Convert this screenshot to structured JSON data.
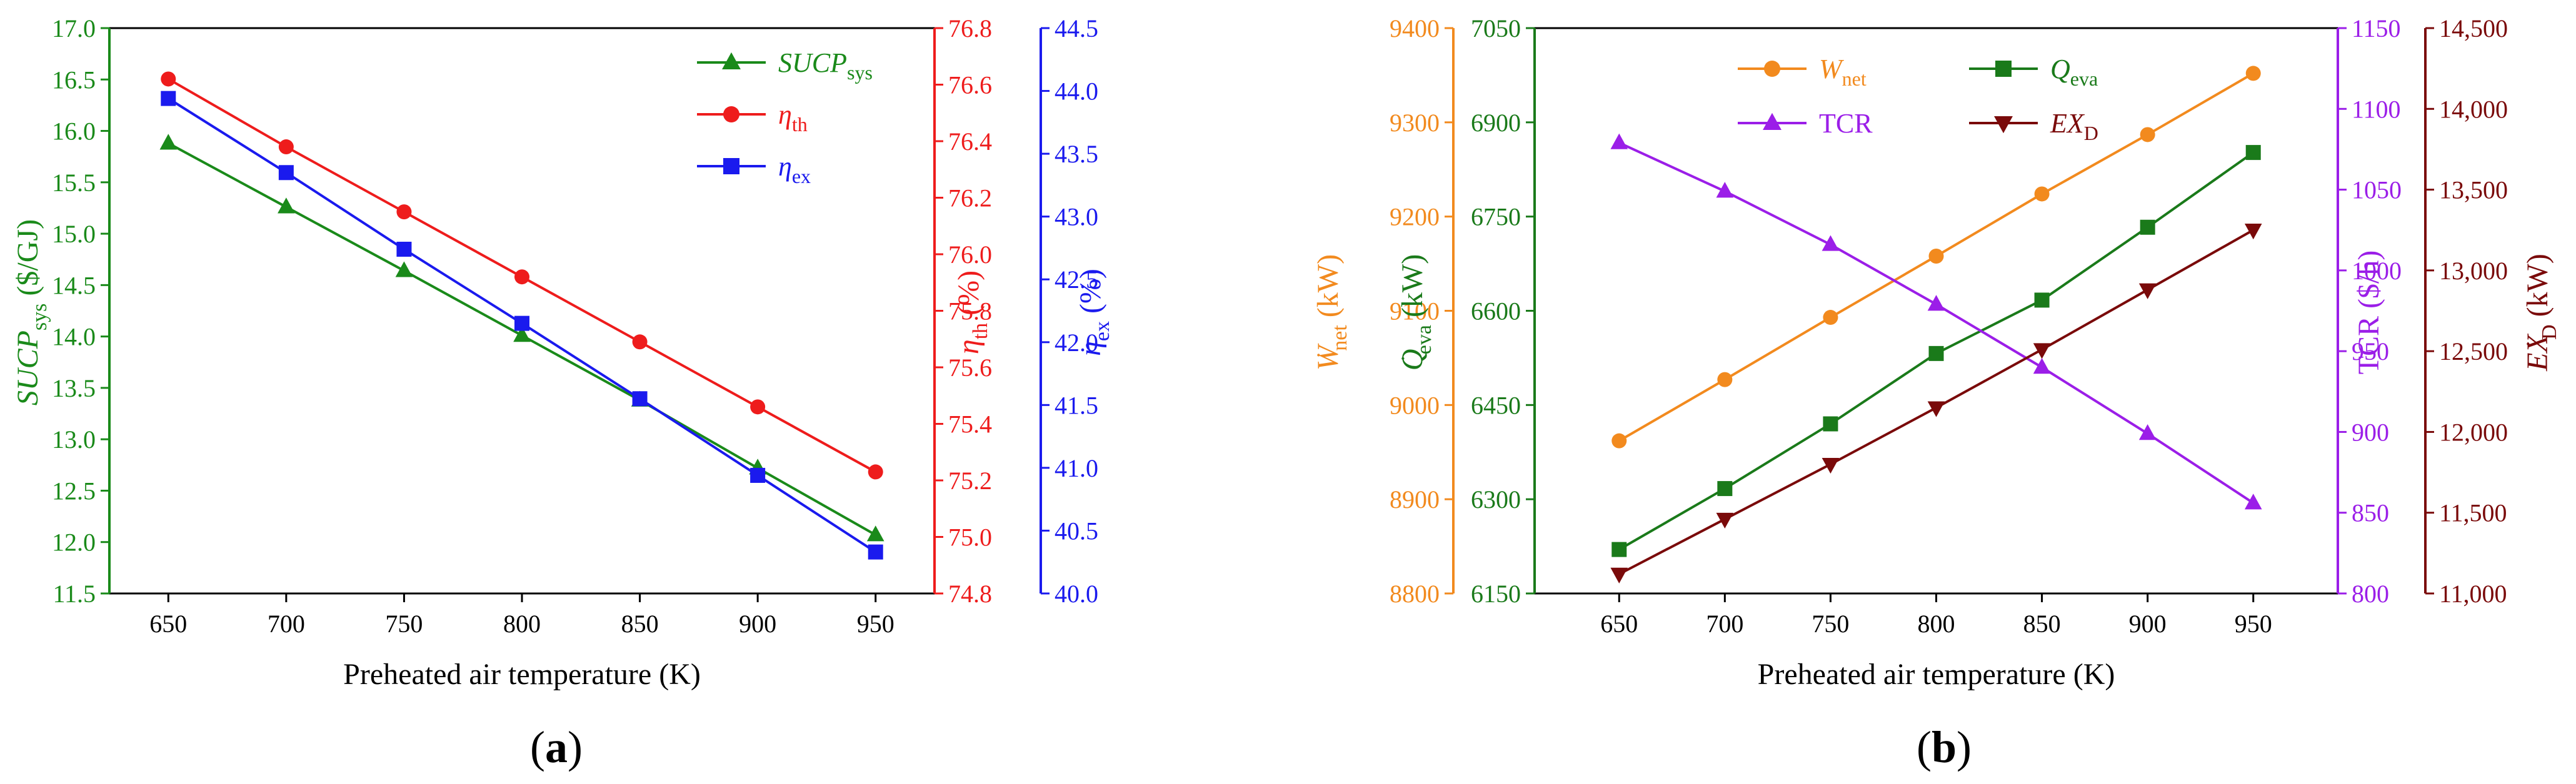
{
  "chart_data": [
    {
      "id": "a",
      "type": "line",
      "caption_letter": "a",
      "caption_left": "(",
      "caption_right": ")",
      "xlabel": "Preheated air temperature (K)",
      "x": [
        650,
        700,
        750,
        800,
        850,
        900,
        950
      ],
      "xlim": [
        625,
        975
      ],
      "xticks": [
        "650",
        "700",
        "750",
        "800",
        "850",
        "900",
        "950"
      ],
      "axes": [
        {
          "key": "y1",
          "side": "left",
          "color": "#1a8a1a",
          "ylim": [
            11.5,
            17.0
          ],
          "ticks": [
            "11.5",
            "12.0",
            "12.5",
            "13.0",
            "13.5",
            "14.0",
            "14.5",
            "15.0",
            "15.5",
            "16.0",
            "16.5",
            "17.0"
          ],
          "label_main": "SUCP",
          "label_sub": "sys",
          "label_tail": " ($/GJ)"
        },
        {
          "key": "y2",
          "side": "right",
          "color": "#ee1c1c",
          "ylim": [
            74.8,
            76.8
          ],
          "ticks": [
            "74.8",
            "75.0",
            "75.2",
            "75.4",
            "75.6",
            "75.8",
            "76.0",
            "76.2",
            "76.4",
            "76.6",
            "76.8"
          ],
          "label_main": "η",
          "label_sub": "th",
          "label_tail": " (%)"
        },
        {
          "key": "y3",
          "side": "right",
          "color": "#1a1aee",
          "ylim": [
            40.0,
            44.5
          ],
          "ticks": [
            "40.0",
            "40.5",
            "41.0",
            "41.5",
            "42.0",
            "42.5",
            "43.0",
            "43.5",
            "44.0",
            "44.5"
          ],
          "label_main": "η",
          "label_sub": "ex",
          "label_tail": " (%)"
        }
      ],
      "series": [
        {
          "axis": "y1",
          "name_main": "SUCP",
          "name_sub": "sys",
          "color": "#1a8a1a",
          "marker": "triangle-up",
          "values": [
            15.88,
            15.26,
            14.64,
            14.01,
            13.38,
            12.72,
            12.07
          ]
        },
        {
          "axis": "y2",
          "name_main": "η",
          "name_sub": "th",
          "color": "#ee1c1c",
          "marker": "circle",
          "values": [
            76.62,
            76.38,
            76.15,
            75.92,
            75.69,
            75.46,
            75.23
          ]
        },
        {
          "axis": "y3",
          "name_main": "η",
          "name_sub": "ex",
          "color": "#1a1aee",
          "marker": "square",
          "values": [
            43.94,
            43.35,
            42.74,
            42.15,
            41.55,
            40.94,
            40.33
          ]
        }
      ]
    },
    {
      "id": "b",
      "type": "line",
      "caption_letter": "b",
      "caption_left": "(",
      "caption_right": ")",
      "xlabel": "Preheated air temperature (K)",
      "x": [
        650,
        700,
        750,
        800,
        850,
        900,
        950
      ],
      "xlim": [
        610,
        990
      ],
      "xticks": [
        "650",
        "700",
        "750",
        "800",
        "850",
        "900",
        "950"
      ],
      "axes": [
        {
          "key": "w",
          "side": "left",
          "color": "#f28a1e",
          "ylim": [
            8800,
            9400
          ],
          "ticks": [
            "8800",
            "8900",
            "9000",
            "9100",
            "9200",
            "9300",
            "9400"
          ],
          "label_main": "W",
          "label_dot": "˙",
          "label_sub": "net",
          "label_tail": " (kW)"
        },
        {
          "key": "q",
          "side": "left",
          "color": "#1a7a1a",
          "ylim": [
            6150,
            7050
          ],
          "ticks": [
            "6150",
            "6300",
            "6450",
            "6600",
            "6750",
            "6900",
            "7050"
          ],
          "label_main": "Q",
          "label_dot": "˙",
          "label_sub": "eva",
          "label_tail": " (kW)"
        },
        {
          "key": "t",
          "side": "right",
          "color": "#9b1ee8",
          "ylim": [
            800,
            1150
          ],
          "ticks": [
            "800",
            "850",
            "900",
            "950",
            "1000",
            "1050",
            "1100",
            "1150"
          ],
          "label_main": "TCR",
          "label_tail": " ($/h)"
        },
        {
          "key": "e",
          "side": "right",
          "color": "#7a0a0a",
          "ylim": [
            11000,
            14500
          ],
          "ticks": [
            "11,000",
            "11,500",
            "12,000",
            "12,500",
            "13,000",
            "13,500",
            "14,000",
            "14,500"
          ],
          "label_main": "EX",
          "label_dot": "˙",
          "label_sub": "D",
          "label_tail": " (kW)"
        }
      ],
      "series": [
        {
          "axis": "w",
          "name_main": "W",
          "name_sub": "net",
          "color": "#f28a1e",
          "marker": "circle",
          "values": [
            8962,
            9027,
            9093,
            9158,
            9224,
            9287,
            9352
          ]
        },
        {
          "axis": "q",
          "name_main": "Q",
          "name_sub": "eva",
          "color": "#1a7a1a",
          "marker": "square",
          "values": [
            6220,
            6317,
            6420,
            6532,
            6617,
            6733,
            6852
          ]
        },
        {
          "axis": "t",
          "name_main": "TCR",
          "name_sub": "",
          "color": "#9b1ee8",
          "marker": "triangle-up",
          "values": [
            1079,
            1049,
            1016,
            979,
            940,
            899,
            856
          ]
        },
        {
          "axis": "e",
          "name_main": "EX",
          "name_sub": "D",
          "color": "#7a0a0a",
          "marker": "triangle-down",
          "values": [
            11120,
            11460,
            11800,
            12150,
            12510,
            12880,
            13250
          ]
        }
      ]
    }
  ]
}
